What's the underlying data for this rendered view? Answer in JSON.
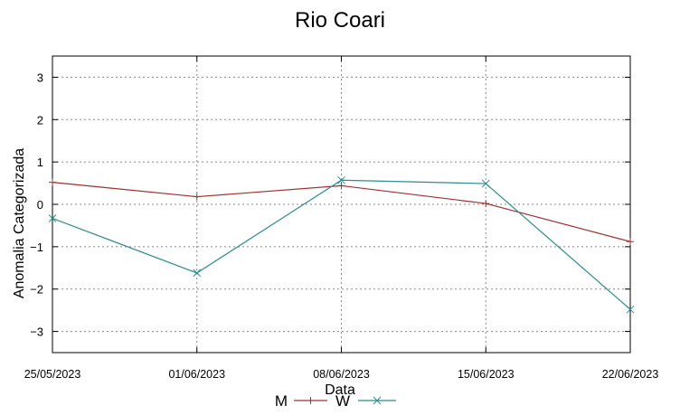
{
  "chart_data": {
    "type": "line",
    "title": "Rio Coari",
    "xlabel": "Data",
    "ylabel": "Anomalia Categorizada",
    "categories": [
      "25/05/2023",
      "01/06/2023",
      "08/06/2023",
      "15/06/2023",
      "22/06/2023"
    ],
    "yticks": [
      3,
      2,
      1,
      0,
      -1,
      -2,
      -3
    ],
    "ylim": [
      -3.5,
      3.5
    ],
    "grid": true,
    "legend_position": "bottom",
    "series": [
      {
        "name": "M",
        "color": "#a0302c",
        "marker": "plus",
        "values": [
          0.52,
          0.18,
          0.44,
          0.02,
          -0.88
        ]
      },
      {
        "name": "W",
        "color": "#2e8b8f",
        "marker": "x",
        "values": [
          -0.33,
          -1.62,
          0.57,
          0.49,
          -2.48
        ]
      }
    ]
  }
}
